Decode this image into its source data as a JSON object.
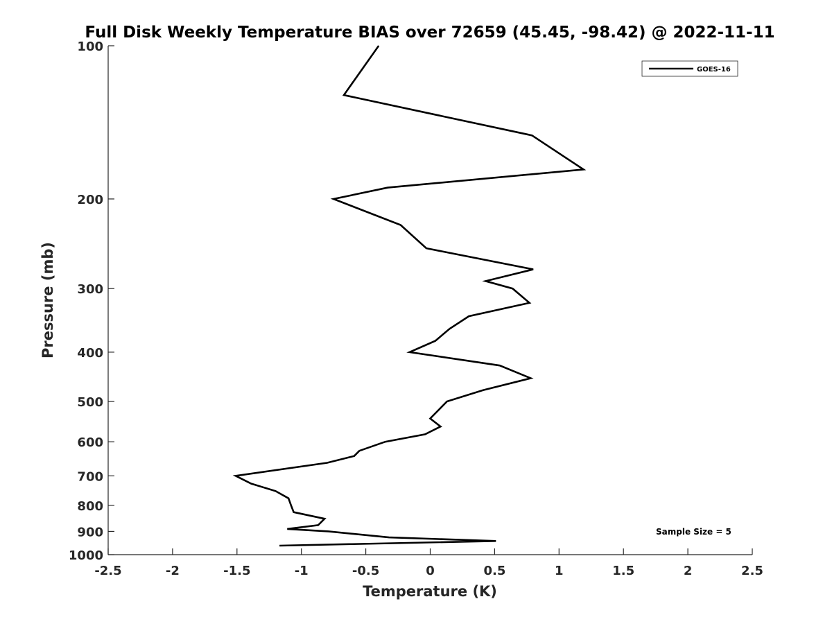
{
  "chart_data": {
    "type": "line",
    "title": "Full Disk Weekly Temperature BIAS over 72659 (45.45, -98.42) @ 2022-11-11",
    "xlabel": "Temperature (K)",
    "ylabel": "Pressure (mb)",
    "xlim": [
      -2.5,
      2.5
    ],
    "ylim": [
      100,
      1000
    ],
    "y_scale": "log",
    "y_reversed": true,
    "x_ticks": [
      "-2.5",
      "-2",
      "-1.5",
      "-1",
      "-0.5",
      "0",
      "0.5",
      "1",
      "1.5",
      "2",
      "2.5"
    ],
    "x_tick_values": [
      -2.5,
      -2,
      -1.5,
      -1,
      -0.5,
      0,
      0.5,
      1,
      1.5,
      2,
      2.5
    ],
    "y_ticks": [
      "100",
      "200",
      "300",
      "400",
      "500",
      "600",
      "700",
      "800",
      "900",
      "1000"
    ],
    "y_tick_values": [
      100,
      200,
      300,
      400,
      500,
      600,
      700,
      800,
      900,
      1000
    ],
    "grid": false,
    "legend_position": "top-right",
    "series": [
      {
        "name": "GOES-16",
        "color": "#000000",
        "points": [
          [
            -0.4,
            100
          ],
          [
            -0.67,
            125
          ],
          [
            0.79,
            150
          ],
          [
            1.19,
            175
          ],
          [
            -0.33,
            190
          ],
          [
            -0.75,
            200
          ],
          [
            -0.23,
            225
          ],
          [
            -0.03,
            250
          ],
          [
            0.8,
            275
          ],
          [
            0.43,
            290
          ],
          [
            0.64,
            300
          ],
          [
            0.77,
            320
          ],
          [
            0.3,
            340
          ],
          [
            0.15,
            360
          ],
          [
            0.04,
            380
          ],
          [
            -0.16,
            400
          ],
          [
            0.54,
            425
          ],
          [
            0.78,
            450
          ],
          [
            0.41,
            475
          ],
          [
            0.13,
            500
          ],
          [
            0.0,
            540
          ],
          [
            0.08,
            560
          ],
          [
            -0.04,
            580
          ],
          [
            -0.35,
            600
          ],
          [
            -0.55,
            625
          ],
          [
            -0.59,
            640
          ],
          [
            -0.8,
            660
          ],
          [
            -1.51,
            700
          ],
          [
            -1.39,
            725
          ],
          [
            -1.2,
            750
          ],
          [
            -1.1,
            775
          ],
          [
            -1.08,
            800
          ],
          [
            -1.06,
            825
          ],
          [
            -0.82,
            850
          ],
          [
            -0.87,
            875
          ],
          [
            -1.11,
            890
          ],
          [
            -0.79,
            900
          ],
          [
            -0.32,
            925
          ],
          [
            0.51,
            940
          ],
          [
            -1.17,
            960
          ]
        ]
      }
    ],
    "annotations": [
      {
        "text": "Sample Size = 5"
      }
    ]
  }
}
